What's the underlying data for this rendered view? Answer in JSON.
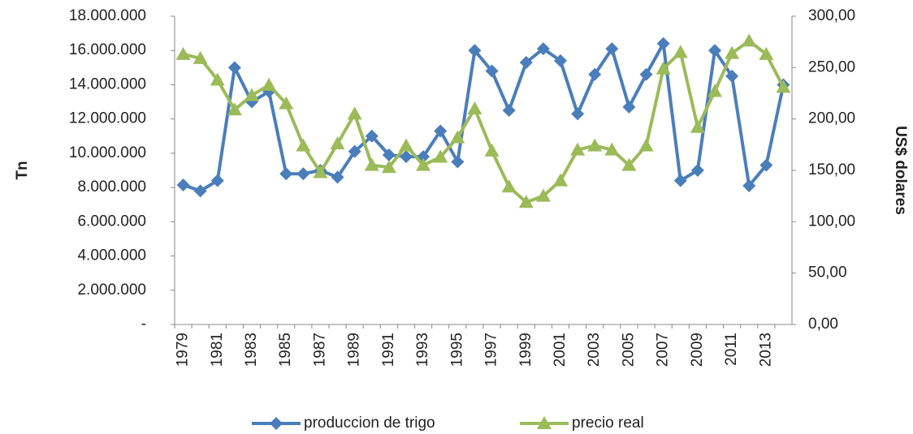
{
  "chart_data": {
    "type": "line",
    "categories": [
      "1979",
      null,
      "1981",
      null,
      "1983",
      null,
      "1985",
      null,
      "1987",
      null,
      "1989",
      null,
      "1991",
      null,
      "1993",
      null,
      "1995",
      null,
      "1997",
      null,
      "1999",
      null,
      "2001",
      null,
      "2003",
      null,
      "2005",
      null,
      "2007",
      null,
      "2009",
      null,
      "2011",
      null,
      "2013",
      null
    ],
    "ylabel": "Tn",
    "y2label": "US$ dolares",
    "ylim": [
      0,
      18000000
    ],
    "yticks": [
      {
        "value": 0,
        "label": "-"
      },
      {
        "value": 2000000,
        "label": "2.000.000"
      },
      {
        "value": 4000000,
        "label": "4.000.000"
      },
      {
        "value": 6000000,
        "label": "6.000.000"
      },
      {
        "value": 8000000,
        "label": "8.000.000"
      },
      {
        "value": 10000000,
        "label": "10.000.000"
      },
      {
        "value": 12000000,
        "label": "12.000.000"
      },
      {
        "value": 14000000,
        "label": "14.000.000"
      },
      {
        "value": 16000000,
        "label": "16.000.000"
      },
      {
        "value": 18000000,
        "label": "18.000.000"
      }
    ],
    "y2lim": [
      0,
      300
    ],
    "y2ticks": [
      {
        "value": 0,
        "label": "0,00"
      },
      {
        "value": 50,
        "label": "50,00"
      },
      {
        "value": 100,
        "label": "100,00"
      },
      {
        "value": 150,
        "label": "150,00"
      },
      {
        "value": 200,
        "label": "200,00"
      },
      {
        "value": 250,
        "label": "250,00"
      },
      {
        "value": 300,
        "label": "300,00"
      }
    ],
    "legend": "bottom",
    "series": [
      {
        "name": "produccion de trigo",
        "color": "#4a7ebb",
        "marker": "diamond",
        "values": [
          8150000,
          7800000,
          8400000,
          15000000,
          13000000,
          13600000,
          8800000,
          8800000,
          9000000,
          8600000,
          10100000,
          11000000,
          9900000,
          9800000,
          9800000,
          11300000,
          9500000,
          16000000,
          14800000,
          12500000,
          15300000,
          16100000,
          15400000,
          12300000,
          14600000,
          16100000,
          12700000,
          14600000,
          16400000,
          8400000,
          9000000,
          16000000,
          14500000,
          8100000,
          9300000,
          14000000
        ]
      },
      {
        "name": "precio real",
        "color": "#9bbb59",
        "marker": "triangle",
        "axis": "y2",
        "values": [
          263,
          259,
          238,
          209,
          223,
          233,
          215,
          174,
          148,
          176,
          205,
          155,
          153,
          174,
          155,
          163,
          182,
          210,
          169,
          134,
          119,
          125,
          140,
          170,
          174,
          170,
          155,
          174,
          249,
          265,
          192,
          227,
          264,
          276,
          263,
          231
        ]
      }
    ]
  }
}
